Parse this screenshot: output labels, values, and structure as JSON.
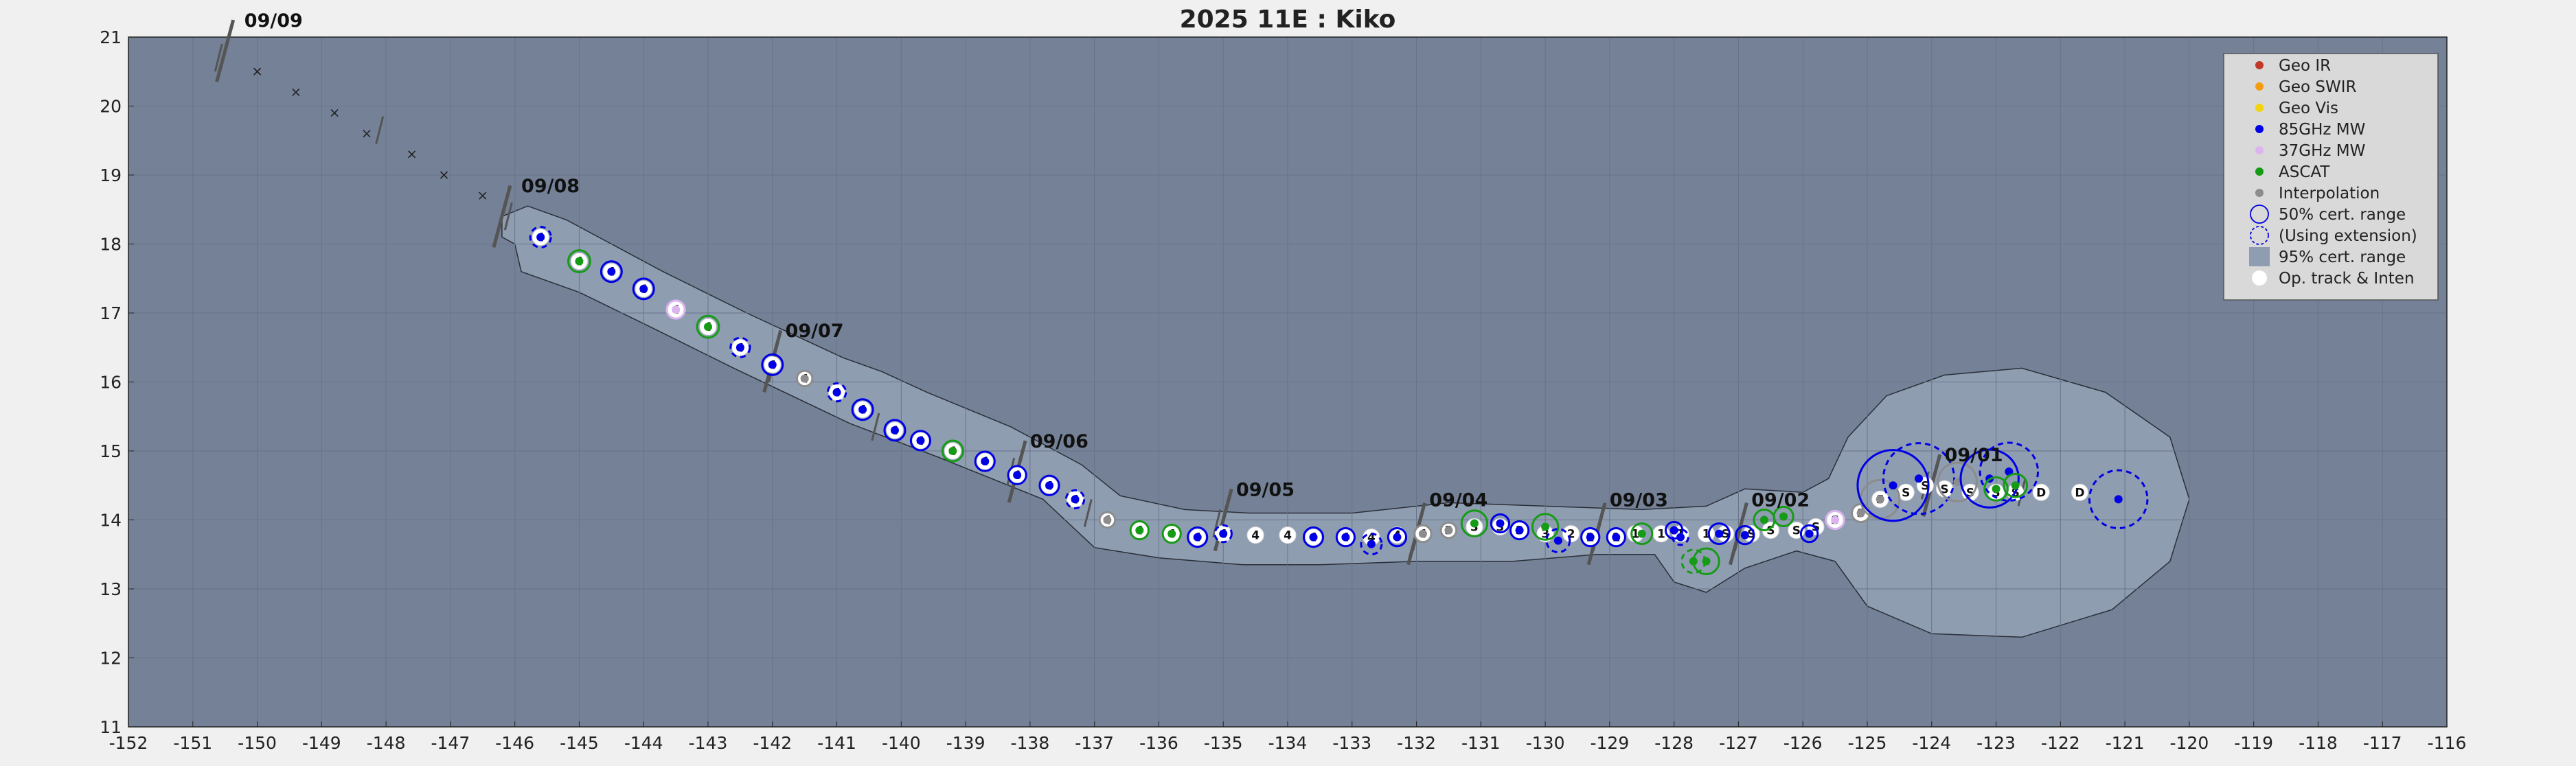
{
  "chart_data": {
    "type": "scatter",
    "title": "2025  11E :  Kiko",
    "xlim": [
      -152,
      -116
    ],
    "ylim": [
      11,
      21
    ],
    "xticks": [
      -152,
      -151,
      -150,
      -149,
      -148,
      -147,
      -146,
      -145,
      -144,
      -143,
      -142,
      -141,
      -140,
      -139,
      -138,
      -137,
      -136,
      -135,
      -134,
      -133,
      -132,
      -131,
      -130,
      -129,
      -128,
      -127,
      -126,
      -125,
      -124,
      -123,
      -122,
      -121,
      -120,
      -119,
      -118,
      -117,
      -116
    ],
    "yticks": [
      11,
      12,
      13,
      14,
      15,
      16,
      17,
      18,
      19,
      20,
      21
    ],
    "grid": true,
    "legend_position": "top-right",
    "colors": {
      "axes_bg": "#748196",
      "envelope": "#8f9db1",
      "grid": "#67748a",
      "geo_ir": "#c0392b",
      "geo_swir": "#f39c12",
      "geo_vis": "#f1d40f",
      "mw85": "#0000e6",
      "mw37": "#dcb4f0",
      "ascat": "#169b16",
      "interp": "#8c8c8c",
      "op": "#ffffff"
    },
    "legend": [
      {
        "label": "Geo IR",
        "kind": "dot",
        "color": "geo_ir"
      },
      {
        "label": "Geo SWIR",
        "kind": "dot",
        "color": "geo_swir"
      },
      {
        "label": "Geo Vis",
        "kind": "dot",
        "color": "geo_vis"
      },
      {
        "label": "85GHz MW",
        "kind": "dot",
        "color": "mw85"
      },
      {
        "label": "37GHz MW",
        "kind": "dot",
        "color": "mw37"
      },
      {
        "label": "ASCAT",
        "kind": "dot",
        "color": "ascat"
      },
      {
        "label": "Interpolation",
        "kind": "dot",
        "color": "interp"
      },
      {
        "label": "50% cert. range",
        "kind": "circle",
        "color": "mw85"
      },
      {
        "label": "(Using extension)",
        "kind": "dashcircle",
        "color": "mw85"
      },
      {
        "label": "95% cert. range",
        "kind": "square",
        "color": "envelope"
      },
      {
        "label": "Op. track & Inten",
        "kind": "bigdot",
        "color": "op"
      }
    ],
    "envelope": [
      [
        -146.0,
        18.0
      ],
      [
        -145.9,
        17.6
      ],
      [
        -145.0,
        17.3
      ],
      [
        -143.9,
        16.8
      ],
      [
        -142.6,
        16.2
      ],
      [
        -140.8,
        15.4
      ],
      [
        -139.4,
        14.9
      ],
      [
        -137.8,
        14.3
      ],
      [
        -137.0,
        13.6
      ],
      [
        -136.0,
        13.45
      ],
      [
        -134.7,
        13.35
      ],
      [
        -133.5,
        13.35
      ],
      [
        -132.0,
        13.4
      ],
      [
        -130.5,
        13.4
      ],
      [
        -129.2,
        13.5
      ],
      [
        -128.3,
        13.5
      ],
      [
        -128.0,
        13.1
      ],
      [
        -127.5,
        12.95
      ],
      [
        -126.9,
        13.3
      ],
      [
        -126.1,
        13.55
      ],
      [
        -125.5,
        13.4
      ],
      [
        -125.0,
        12.75
      ],
      [
        -124.0,
        12.35
      ],
      [
        -122.6,
        12.3
      ],
      [
        -121.2,
        12.7
      ],
      [
        -120.3,
        13.4
      ],
      [
        -120.0,
        14.3
      ],
      [
        -120.3,
        15.2
      ],
      [
        -121.3,
        15.85
      ],
      [
        -122.6,
        16.2
      ],
      [
        -123.8,
        16.1
      ],
      [
        -124.7,
        15.8
      ],
      [
        -125.3,
        15.2
      ],
      [
        -125.6,
        14.6
      ],
      [
        -126.0,
        14.4
      ],
      [
        -126.9,
        14.45
      ],
      [
        -127.5,
        14.2
      ],
      [
        -128.5,
        14.15
      ],
      [
        -130.0,
        14.2
      ],
      [
        -131.5,
        14.25
      ],
      [
        -133.0,
        14.1
      ],
      [
        -134.6,
        14.1
      ],
      [
        -135.6,
        14.15
      ],
      [
        -136.6,
        14.35
      ],
      [
        -137.2,
        14.8
      ],
      [
        -138.3,
        15.35
      ],
      [
        -139.6,
        15.85
      ],
      [
        -140.3,
        16.15
      ],
      [
        -140.9,
        16.35
      ],
      [
        -142.4,
        17.0
      ],
      [
        -143.7,
        17.6
      ],
      [
        -145.2,
        18.35
      ],
      [
        -145.8,
        18.55
      ],
      [
        -146.2,
        18.4
      ],
      [
        -146.2,
        18.1
      ]
    ],
    "past_track": [
      [
        -150.0,
        20.5
      ],
      [
        -149.4,
        20.2
      ],
      [
        -148.8,
        19.9
      ],
      [
        -148.3,
        19.6
      ],
      [
        -147.6,
        19.3
      ],
      [
        -147.1,
        19.0
      ],
      [
        -146.5,
        18.7
      ]
    ],
    "date_labels": [
      {
        "label": "09/09",
        "x": -150.5,
        "y": 20.8,
        "lx": -150.2,
        "ly": 21.15
      },
      {
        "label": "09/08",
        "x": -146.2,
        "y": 18.4,
        "lx": -145.9,
        "ly": 18.75
      },
      {
        "label": "09/07",
        "x": -142.0,
        "y": 16.3,
        "lx": -141.8,
        "ly": 16.65
      },
      {
        "label": "09/06",
        "x": -138.2,
        "y": 14.7,
        "lx": -138.0,
        "ly": 15.05
      },
      {
        "label": "09/05",
        "x": -135.0,
        "y": 14.0,
        "lx": -134.8,
        "ly": 14.35
      },
      {
        "label": "09/04",
        "x": -132.0,
        "y": 13.8,
        "lx": -131.8,
        "ly": 14.2
      },
      {
        "label": "09/03",
        "x": -129.2,
        "y": 13.8,
        "lx": -129.0,
        "ly": 14.2
      },
      {
        "label": "09/02",
        "x": -127.0,
        "y": 13.8,
        "lx": -126.8,
        "ly": 14.2
      },
      {
        "label": "09/01",
        "x": -124.0,
        "y": 14.5,
        "lx": -123.8,
        "ly": 14.85
      }
    ],
    "op_points": [
      {
        "x": -145.6,
        "y": 18.1,
        "label": "4"
      },
      {
        "x": -145.0,
        "y": 17.75,
        "label": "4"
      },
      {
        "x": -144.5,
        "y": 17.6,
        "label": "4"
      },
      {
        "x": -144.0,
        "y": 17.35,
        "label": "4"
      },
      {
        "x": -143.5,
        "y": 17.05,
        "label": "4"
      },
      {
        "x": -143.0,
        "y": 16.8,
        "label": "4"
      },
      {
        "x": -142.5,
        "y": 16.5,
        "label": "4"
      },
      {
        "x": -142.0,
        "y": 16.25,
        "label": "4"
      },
      {
        "x": -141.5,
        "y": 16.05,
        "label": "4"
      },
      {
        "x": -141.0,
        "y": 15.85,
        "label": "4"
      },
      {
        "x": -140.6,
        "y": 15.6,
        "label": "4"
      },
      {
        "x": -140.1,
        "y": 15.3,
        "label": "4"
      },
      {
        "x": -139.7,
        "y": 15.15,
        "label": "4"
      },
      {
        "x": -139.2,
        "y": 15.0,
        "label": "4"
      },
      {
        "x": -138.7,
        "y": 14.85,
        "label": "4"
      },
      {
        "x": -138.2,
        "y": 14.65,
        "label": "4"
      },
      {
        "x": -137.7,
        "y": 14.5,
        "label": "4"
      },
      {
        "x": -137.3,
        "y": 14.3,
        "label": "4"
      },
      {
        "x": -136.8,
        "y": 14.0,
        "label": "4"
      },
      {
        "x": -136.3,
        "y": 13.85,
        "label": "4"
      },
      {
        "x": -135.8,
        "y": 13.8,
        "label": "4"
      },
      {
        "x": -135.4,
        "y": 13.75,
        "label": "4"
      },
      {
        "x": -135.0,
        "y": 13.8,
        "label": "4"
      },
      {
        "x": -134.5,
        "y": 13.78,
        "label": "4"
      },
      {
        "x": -134.0,
        "y": 13.78,
        "label": "4"
      },
      {
        "x": -133.6,
        "y": 13.75,
        "label": "4"
      },
      {
        "x": -133.1,
        "y": 13.75,
        "label": "4"
      },
      {
        "x": -132.7,
        "y": 13.75,
        "label": "4"
      },
      {
        "x": -132.3,
        "y": 13.78,
        "label": "4"
      },
      {
        "x": -131.9,
        "y": 13.8,
        "label": "4"
      },
      {
        "x": -131.5,
        "y": 13.85,
        "label": "3"
      },
      {
        "x": -131.1,
        "y": 13.9,
        "label": "3"
      },
      {
        "x": -130.7,
        "y": 13.9,
        "label": "3"
      },
      {
        "x": -130.4,
        "y": 13.85,
        "label": "3"
      },
      {
        "x": -130.0,
        "y": 13.8,
        "label": "3"
      },
      {
        "x": -129.6,
        "y": 13.8,
        "label": "2"
      },
      {
        "x": -129.3,
        "y": 13.75,
        "label": "2"
      },
      {
        "x": -128.9,
        "y": 13.75,
        "label": "1"
      },
      {
        "x": -128.6,
        "y": 13.8,
        "label": "1"
      },
      {
        "x": -128.2,
        "y": 13.8,
        "label": "1"
      },
      {
        "x": -127.9,
        "y": 13.8,
        "label": "1"
      },
      {
        "x": -127.5,
        "y": 13.8,
        "label": "1"
      },
      {
        "x": -127.2,
        "y": 13.8,
        "label": "S"
      },
      {
        "x": -126.8,
        "y": 13.8,
        "label": "S"
      },
      {
        "x": -126.5,
        "y": 13.85,
        "label": "S"
      },
      {
        "x": -126.1,
        "y": 13.85,
        "label": "S"
      },
      {
        "x": -125.8,
        "y": 13.9,
        "label": "S"
      },
      {
        "x": -125.5,
        "y": 14.0,
        "label": "S"
      },
      {
        "x": -125.1,
        "y": 14.1,
        "label": "S"
      },
      {
        "x": -124.8,
        "y": 14.3,
        "label": "S"
      },
      {
        "x": -124.4,
        "y": 14.4,
        "label": "S"
      },
      {
        "x": -124.1,
        "y": 14.5,
        "label": "S"
      },
      {
        "x": -123.8,
        "y": 14.45,
        "label": "S"
      },
      {
        "x": -123.4,
        "y": 14.4,
        "label": "S"
      },
      {
        "x": -123.0,
        "y": 14.4,
        "label": "S"
      },
      {
        "x": -122.7,
        "y": 14.4,
        "label": "S"
      },
      {
        "x": -122.3,
        "y": 14.4,
        "label": "D"
      },
      {
        "x": -121.7,
        "y": 14.4,
        "label": "D"
      }
    ],
    "fixes": [
      {
        "x": -145.6,
        "y": 18.1,
        "type": "mw85",
        "r": 0.16,
        "ext": true
      },
      {
        "x": -145.0,
        "y": 17.75,
        "type": "ascat",
        "r": 0.17,
        "ext": false
      },
      {
        "x": -144.5,
        "y": 17.6,
        "type": "mw85",
        "r": 0.16,
        "ext": false
      },
      {
        "x": -144.0,
        "y": 17.35,
        "type": "mw85",
        "r": 0.16,
        "ext": false
      },
      {
        "x": -143.5,
        "y": 17.05,
        "type": "mw37",
        "r": 0.14,
        "ext": false
      },
      {
        "x": -143.0,
        "y": 16.8,
        "type": "ascat",
        "r": 0.17,
        "ext": false
      },
      {
        "x": -142.5,
        "y": 16.5,
        "type": "mw85",
        "r": 0.15,
        "ext": true
      },
      {
        "x": -142.0,
        "y": 16.25,
        "type": "mw85",
        "r": 0.16,
        "ext": false
      },
      {
        "x": -141.5,
        "y": 16.05,
        "type": "interp",
        "r": 0.12,
        "ext": false
      },
      {
        "x": -141.0,
        "y": 15.85,
        "type": "mw85",
        "r": 0.14,
        "ext": true
      },
      {
        "x": -140.6,
        "y": 15.6,
        "type": "mw85",
        "r": 0.16,
        "ext": false
      },
      {
        "x": -140.1,
        "y": 15.3,
        "type": "mw85",
        "r": 0.16,
        "ext": false
      },
      {
        "x": -139.7,
        "y": 15.15,
        "type": "mw85",
        "r": 0.15,
        "ext": false
      },
      {
        "x": -139.2,
        "y": 15.0,
        "type": "ascat",
        "r": 0.16,
        "ext": false
      },
      {
        "x": -138.7,
        "y": 14.85,
        "type": "mw85",
        "r": 0.15,
        "ext": false
      },
      {
        "x": -138.2,
        "y": 14.65,
        "type": "mw85",
        "r": 0.14,
        "ext": false
      },
      {
        "x": -137.7,
        "y": 14.5,
        "type": "mw85",
        "r": 0.15,
        "ext": false
      },
      {
        "x": -137.3,
        "y": 14.3,
        "type": "mw85",
        "r": 0.14,
        "ext": true
      },
      {
        "x": -136.8,
        "y": 14.0,
        "type": "interp",
        "r": 0.12,
        "ext": false
      },
      {
        "x": -136.3,
        "y": 13.85,
        "type": "ascat",
        "r": 0.14,
        "ext": false
      },
      {
        "x": -135.8,
        "y": 13.8,
        "type": "ascat",
        "r": 0.14,
        "ext": false
      },
      {
        "x": -135.4,
        "y": 13.75,
        "type": "mw85",
        "r": 0.15,
        "ext": false
      },
      {
        "x": -135.0,
        "y": 13.8,
        "type": "mw85",
        "r": 0.13,
        "ext": true
      },
      {
        "x": -133.6,
        "y": 13.75,
        "type": "mw85",
        "r": 0.15,
        "ext": false
      },
      {
        "x": -133.1,
        "y": 13.75,
        "type": "mw85",
        "r": 0.14,
        "ext": false
      },
      {
        "x": -132.7,
        "y": 13.65,
        "type": "mw85",
        "r": 0.16,
        "ext": true
      },
      {
        "x": -132.3,
        "y": 13.75,
        "type": "mw85",
        "r": 0.14,
        "ext": false
      },
      {
        "x": -131.9,
        "y": 13.8,
        "type": "interp",
        "r": 0.13,
        "ext": false
      },
      {
        "x": -131.5,
        "y": 13.85,
        "type": "interp",
        "r": 0.12,
        "ext": false
      },
      {
        "x": -131.1,
        "y": 13.95,
        "type": "ascat",
        "r": 0.2,
        "ext": false
      },
      {
        "x": -130.7,
        "y": 13.95,
        "type": "mw85",
        "r": 0.14,
        "ext": false
      },
      {
        "x": -130.4,
        "y": 13.85,
        "type": "mw85",
        "r": 0.14,
        "ext": false
      },
      {
        "x": -130.0,
        "y": 13.9,
        "type": "ascat",
        "r": 0.2,
        "ext": false
      },
      {
        "x": -129.8,
        "y": 13.7,
        "type": "mw85",
        "r": 0.18,
        "ext": true
      },
      {
        "x": -129.3,
        "y": 13.75,
        "type": "mw85",
        "r": 0.14,
        "ext": false
      },
      {
        "x": -128.9,
        "y": 13.75,
        "type": "mw85",
        "r": 0.14,
        "ext": false
      },
      {
        "x": -128.5,
        "y": 13.8,
        "type": "ascat",
        "r": 0.16,
        "ext": false
      },
      {
        "x": -128.0,
        "y": 13.85,
        "type": "mw85",
        "r": 0.13,
        "ext": false
      },
      {
        "x": -127.9,
        "y": 13.75,
        "type": "mw85",
        "r": 0.12,
        "ext": true
      },
      {
        "x": -127.5,
        "y": 13.4,
        "type": "ascat",
        "r": 0.2,
        "ext": false
      },
      {
        "x": -127.7,
        "y": 13.4,
        "type": "ascat",
        "r": 0.18,
        "ext": true
      },
      {
        "x": -127.3,
        "y": 13.8,
        "type": "mw85",
        "r": 0.16,
        "ext": false
      },
      {
        "x": -126.9,
        "y": 13.78,
        "type": "mw85",
        "r": 0.14,
        "ext": false
      },
      {
        "x": -126.6,
        "y": 14.0,
        "type": "ascat",
        "r": 0.16,
        "ext": false
      },
      {
        "x": -126.3,
        "y": 14.05,
        "type": "ascat",
        "r": 0.15,
        "ext": false
      },
      {
        "x": -125.9,
        "y": 13.8,
        "type": "mw85",
        "r": 0.13,
        "ext": false
      },
      {
        "x": -125.5,
        "y": 14.0,
        "type": "mw37",
        "r": 0.14,
        "ext": false
      },
      {
        "x": -125.1,
        "y": 14.1,
        "type": "interp",
        "r": 0.14,
        "ext": false
      },
      {
        "x": -124.8,
        "y": 14.3,
        "type": "interp",
        "r": 0.3,
        "ext": false
      },
      {
        "x": -124.6,
        "y": 14.5,
        "type": "mw85",
        "r": 0.55,
        "ext": false
      },
      {
        "x": -124.2,
        "y": 14.6,
        "type": "mw85",
        "r": 0.55,
        "ext": true
      },
      {
        "x": -123.6,
        "y": 14.55,
        "type": "interp",
        "r": 0.3,
        "ext": false
      },
      {
        "x": -123.1,
        "y": 14.6,
        "type": "mw85",
        "r": 0.45,
        "ext": false
      },
      {
        "x": -122.8,
        "y": 14.7,
        "type": "mw85",
        "r": 0.45,
        "ext": true
      },
      {
        "x": -123.0,
        "y": 14.45,
        "type": "ascat",
        "r": 0.18,
        "ext": false
      },
      {
        "x": -122.7,
        "y": 14.5,
        "type": "ascat",
        "r": 0.18,
        "ext": false
      },
      {
        "x": -121.1,
        "y": 14.3,
        "type": "mw85",
        "r": 0.45,
        "ext": true
      }
    ],
    "ticks_marks": [
      {
        "x": -150.6,
        "y": 20.7
      },
      {
        "x": -148.1,
        "y": 19.65
      },
      {
        "x": -146.1,
        "y": 18.4
      },
      {
        "x": -142.0,
        "y": 16.2
      },
      {
        "x": -140.4,
        "y": 15.35
      },
      {
        "x": -138.3,
        "y": 14.7
      },
      {
        "x": -137.1,
        "y": 14.1
      },
      {
        "x": -135.1,
        "y": 13.95
      },
      {
        "x": -132.0,
        "y": 13.75
      },
      {
        "x": -129.2,
        "y": 13.75
      },
      {
        "x": -127.0,
        "y": 13.75
      },
      {
        "x": -124.1,
        "y": 14.5
      },
      {
        "x": -122.6,
        "y": 14.4
      }
    ]
  }
}
